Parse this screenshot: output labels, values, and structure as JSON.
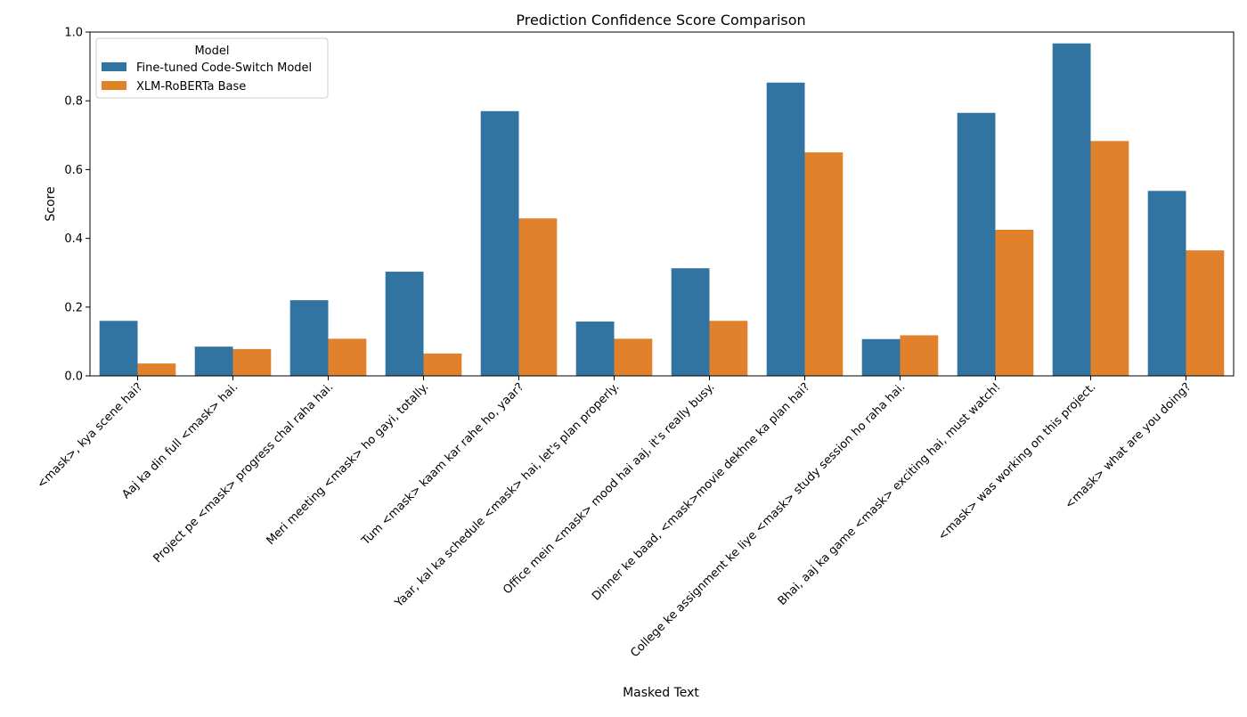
{
  "chart_data": {
    "type": "bar",
    "title": "Prediction Confidence Score Comparison",
    "xlabel": "Masked Text",
    "ylabel": "Score",
    "ylim": [
      0,
      1.0
    ],
    "yticks": [
      "0.0",
      "0.2",
      "0.4",
      "0.6",
      "0.8",
      "1.0"
    ],
    "grid": false,
    "legend": {
      "title": "Model",
      "placement": "top-left"
    },
    "categories": [
      "<mask>, kya scene hai?",
      "Aaj ka din full <mask> hai.",
      "Project pe <mask> progress chal raha hai.",
      "Meri meeting <mask> ho gayi, totally.",
      "Tum <mask> kaam kar rahe ho, yaar?",
      "Yaar, kal ka schedule <mask> hai, let's plan properly.",
      "Office mein <mask> mood hai aaj, it's really busy.",
      "Dinner ke baad, <mask>movie dekhne ka plan hai?",
      "College ke assignment ke liye <mask> study session ho raha hai.",
      "Bhai, aaj ka game <mask> exciting hai, must watch!",
      "<mask> was working on this project.",
      "<mask> what are you doing?"
    ],
    "series": [
      {
        "name": "Fine-tuned Code-Switch Model",
        "color": "#3274a1",
        "values": [
          0.16,
          0.085,
          0.22,
          0.303,
          0.77,
          0.158,
          0.313,
          0.853,
          0.107,
          0.765,
          0.967,
          0.538
        ]
      },
      {
        "name": "XLM-RoBERTa Base",
        "color": "#e1812c",
        "values": [
          0.036,
          0.078,
          0.108,
          0.065,
          0.458,
          0.108,
          0.16,
          0.65,
          0.118,
          0.425,
          0.683,
          0.365
        ]
      }
    ]
  }
}
